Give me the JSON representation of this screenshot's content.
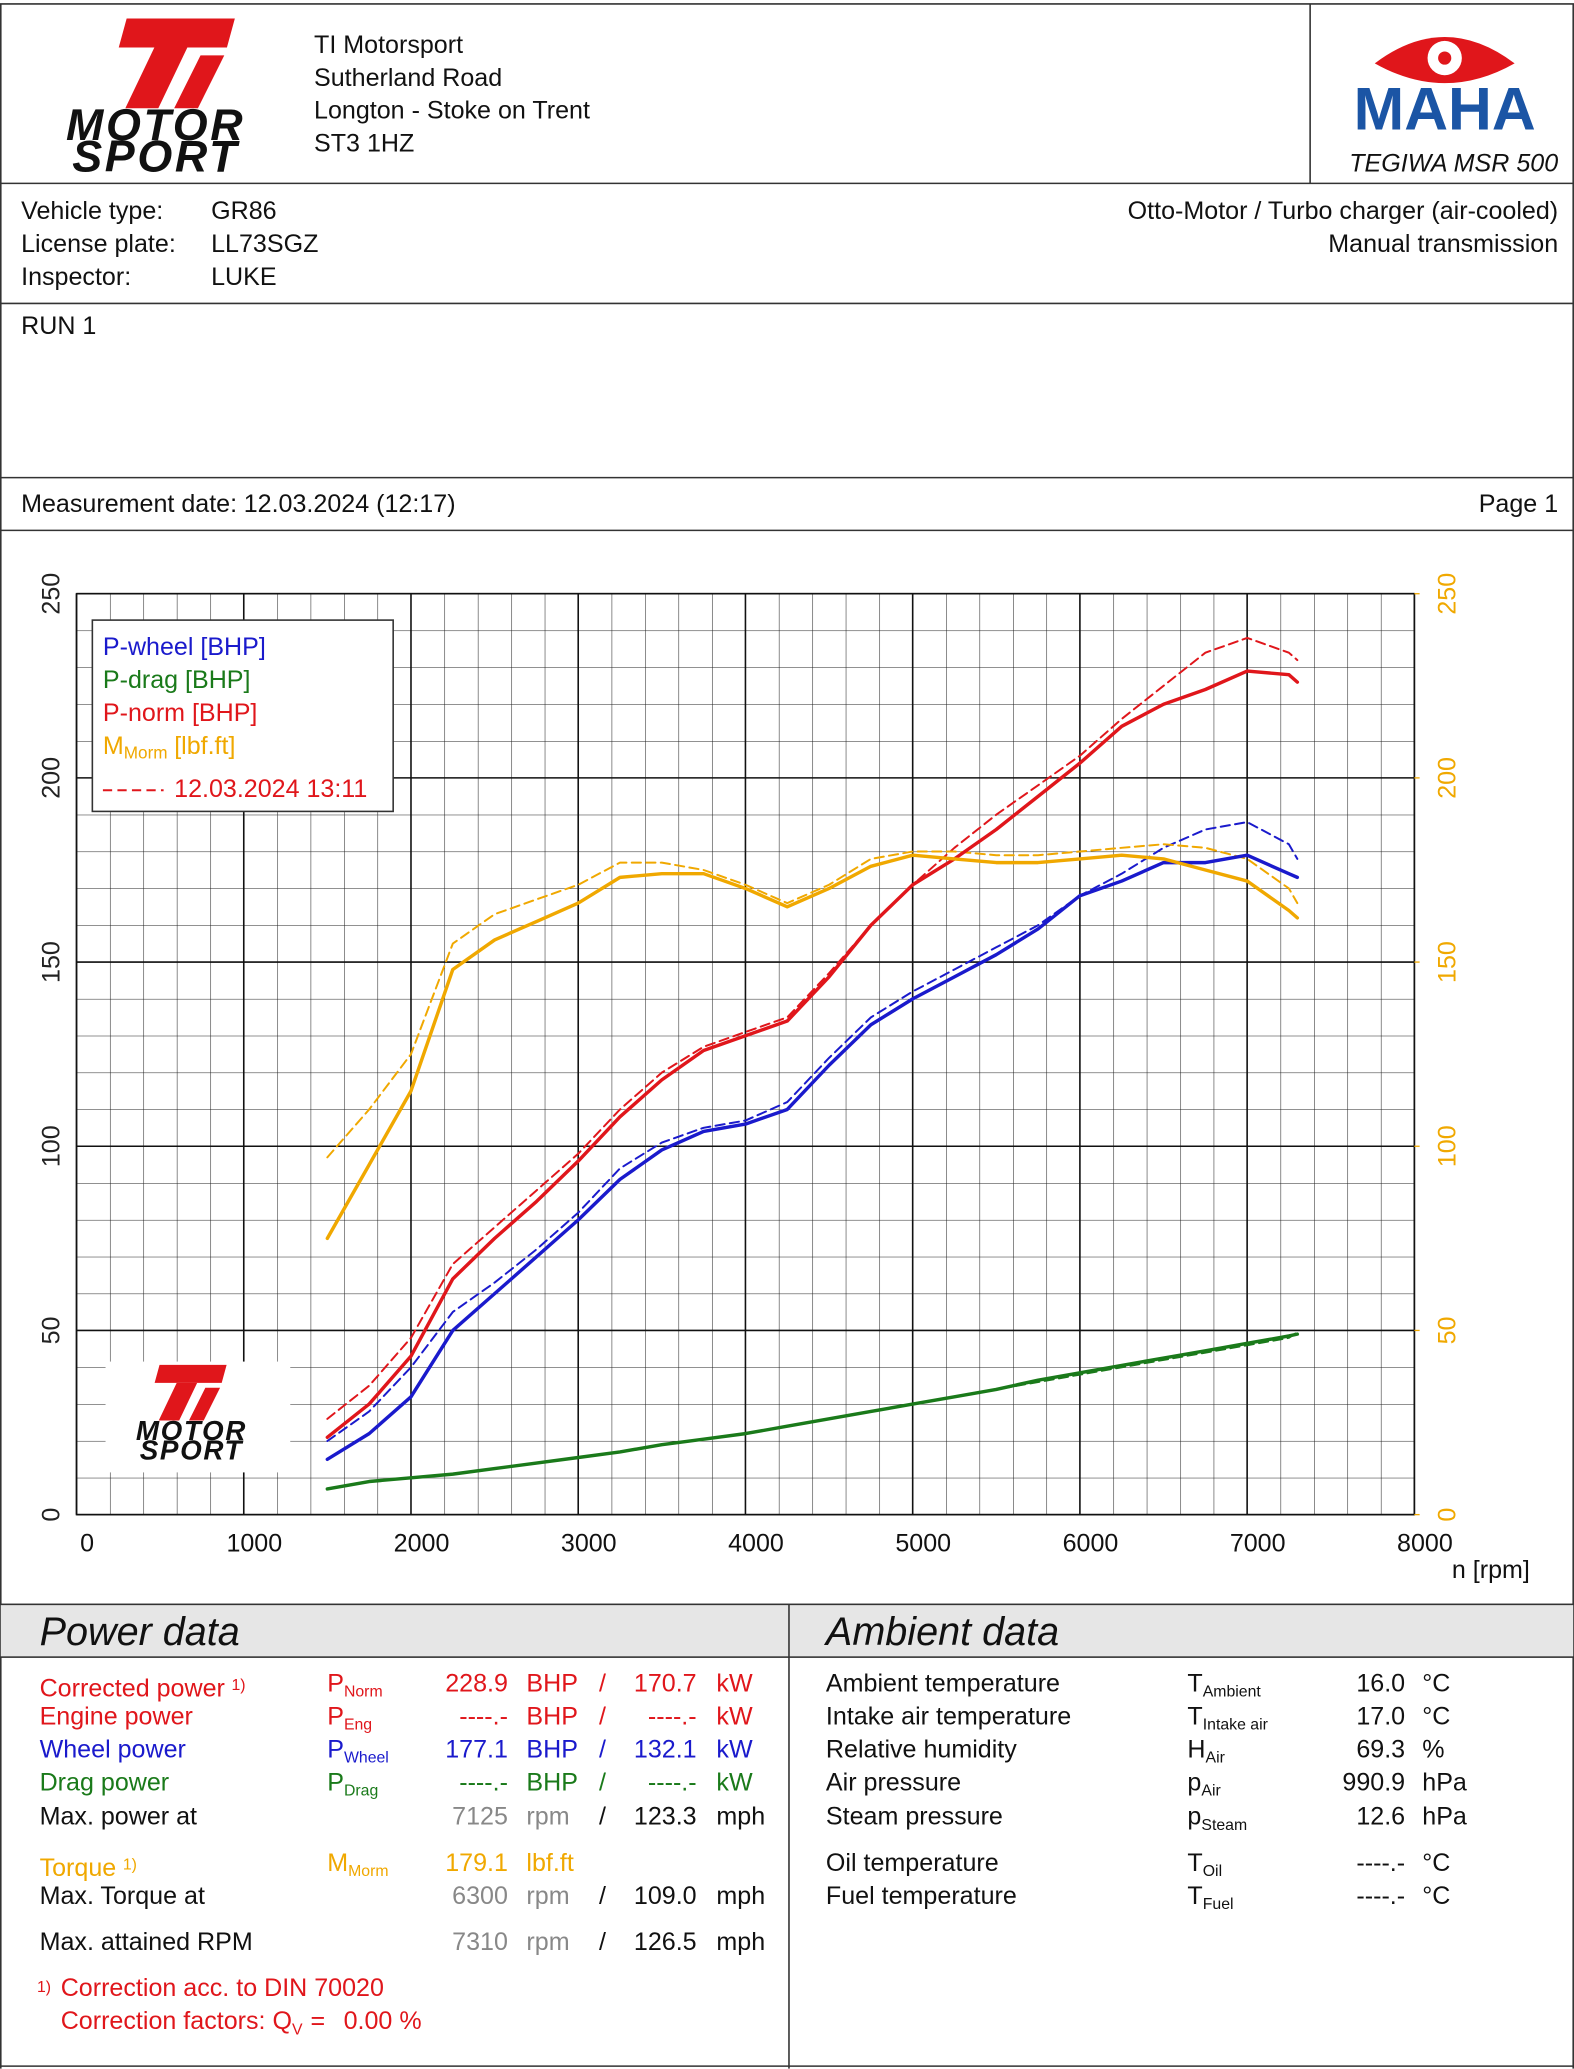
{
  "header": {
    "company": [
      "TI Motorsport",
      "Sutherland Road",
      "Longton - Stoke on Trent",
      "ST3 1HZ"
    ],
    "logo": {
      "line1": "MOTOR",
      "line2": "SPORT"
    },
    "brand": "MAHA",
    "device": "TEGIWA MSR 500"
  },
  "vehicle": {
    "rows": [
      {
        "label": "Vehicle type:",
        "value": "GR86"
      },
      {
        "label": "License plate:",
        "value": "LL73SGZ"
      },
      {
        "label": "Inspector:",
        "value": "LUKE"
      }
    ],
    "engine": "Otto-Motor / Turbo charger (air-cooled)",
    "transmission": "Manual transmission"
  },
  "run": "RUN 1",
  "measurement": {
    "label": "Measurement date:",
    "value": "12.03.2024 (12:17)",
    "page": "Page 1"
  },
  "chart_data": {
    "type": "line",
    "xlabel": "n [rpm]",
    "x": [
      1500,
      1750,
      2000,
      2250,
      2500,
      2750,
      3000,
      3250,
      3500,
      3750,
      4000,
      4250,
      4500,
      4750,
      5000,
      5250,
      5500,
      5750,
      6000,
      6250,
      6500,
      6750,
      7000,
      7250,
      7300
    ],
    "xlim": [
      0,
      8000
    ],
    "xticks": [
      0,
      1000,
      2000,
      3000,
      4000,
      5000,
      6000,
      7000,
      8000
    ],
    "ylim": [
      0,
      250
    ],
    "yticks": [
      0,
      50,
      100,
      150,
      200,
      250
    ],
    "y2lim": [
      0,
      250
    ],
    "y2ticks": [
      0,
      50,
      100,
      150,
      200,
      250
    ],
    "y2_color": "#f0a800",
    "grid": true,
    "legend": "upper left",
    "series": [
      {
        "name": "P-wheel [BHP]",
        "color": "#1a1acc",
        "values": [
          15,
          22,
          32,
          50,
          60,
          70,
          80,
          91,
          99,
          104,
          106,
          110,
          122,
          133,
          140,
          146,
          152,
          159,
          168,
          172,
          177,
          177,
          179,
          174,
          173
        ]
      },
      {
        "name": "P-drag [BHP]",
        "color": "#1a7a1a",
        "values": [
          7,
          9,
          10,
          11,
          12.5,
          14,
          15.5,
          17,
          19,
          20.5,
          22,
          24,
          26,
          28,
          30,
          32,
          34,
          36.5,
          38.5,
          40.5,
          42.5,
          44.5,
          46.5,
          48.5,
          49
        ]
      },
      {
        "name": "P-norm [BHP]",
        "color": "#e0161b",
        "values": [
          21,
          30,
          43,
          64,
          75,
          85,
          96,
          108,
          118,
          126,
          130,
          134,
          146,
          160,
          171,
          178,
          186,
          195,
          204,
          214,
          220,
          224,
          229,
          228,
          226
        ]
      },
      {
        "name": "M",
        "name_sub": "Morm",
        "name_suffix": "[lbf.ft]",
        "color": "#f0a800",
        "axis": "y2",
        "values": [
          75,
          95,
          115,
          148,
          156,
          161,
          166,
          173,
          174,
          174,
          170,
          165,
          170,
          176,
          179,
          178,
          177,
          177,
          178,
          179,
          178,
          175,
          172,
          164,
          162
        ]
      }
    ],
    "comparison": {
      "name": "12.03.2024 13:11",
      "color": "#e0161b",
      "series": [
        {
          "color": "#1a1acc",
          "values": [
            20,
            28,
            40,
            55,
            63,
            72,
            82,
            94,
            101,
            105,
            107,
            112,
            124,
            135,
            142,
            148,
            154,
            160,
            168,
            174,
            181,
            186,
            188,
            182,
            178
          ]
        },
        {
          "color": "#1a7a1a",
          "values": [
            7,
            9,
            10,
            11,
            12.5,
            14,
            15.5,
            17,
            19,
            20.5,
            22,
            24,
            26,
            28,
            30,
            32,
            34,
            36,
            38,
            40,
            42,
            44,
            46,
            48,
            49.5
          ]
        },
        {
          "color": "#e0161b",
          "values": [
            26,
            35,
            48,
            68,
            78,
            88,
            98,
            110,
            120,
            127,
            131,
            135,
            147,
            160,
            171,
            181,
            190,
            198,
            206,
            216,
            225,
            234,
            238,
            234,
            232
          ]
        },
        {
          "color": "#f0a800",
          "axis": "y2",
          "values": [
            97,
            110,
            125,
            155,
            163,
            167,
            171,
            177,
            177,
            175,
            171,
            166,
            171,
            178,
            180,
            180,
            179,
            179,
            180,
            181,
            182,
            181,
            178,
            170,
            166
          ]
        }
      ]
    }
  },
  "power": {
    "title": "Power data",
    "rows": [
      {
        "label": "Corrected power",
        "note": "1)",
        "symbol": "P",
        "sub": "Norm",
        "value": "228.9",
        "unit": "BHP",
        "sep": "/",
        "value2": "170.7",
        "unit2": "kW",
        "color": "#e0161b"
      },
      {
        "label": "Engine power",
        "symbol": "P",
        "sub": "Eng",
        "value": "----.-",
        "unit": "BHP",
        "sep": "/",
        "value2": "----.-",
        "unit2": "kW",
        "color": "#e0161b"
      },
      {
        "label": "Wheel power",
        "symbol": "P",
        "sub": "Wheel",
        "value": "177.1",
        "unit": "BHP",
        "sep": "/",
        "value2": "132.1",
        "unit2": "kW",
        "color": "#1a1acc"
      },
      {
        "label": "Drag power",
        "symbol": "P",
        "sub": "Drag",
        "value": "----.-",
        "unit": "BHP",
        "sep": "/",
        "value2": "----.-",
        "unit2": "kW",
        "color": "#1a7a1a"
      },
      {
        "label": "Max. power at",
        "value": "7125",
        "unit": "rpm",
        "sep": "/",
        "value2": "123.3",
        "unit2": "mph",
        "muted": true
      },
      {
        "label": "Torque",
        "note": "1)",
        "symbol": "M",
        "sub": "Morm",
        "value": "179.1",
        "unit": "lbf.ft",
        "color": "#f0a800"
      },
      {
        "label": "Max. Torque at",
        "value": "6300",
        "unit": "rpm",
        "sep": "/",
        "value2": "109.0",
        "unit2": "mph",
        "muted": true
      },
      {
        "label": "Max. attained RPM",
        "value": "7310",
        "unit": "rpm",
        "sep": "/",
        "value2": "126.5",
        "unit2": "mph",
        "muted": true
      }
    ],
    "footnote": {
      "marker": "1)",
      "text": "Correction acc. to DIN 70020",
      "factors_label": "Correction factors: Q",
      "factors_sub": "V",
      "factors_eq": "=",
      "factors_value": "0.00 %",
      "color": "#e0161b"
    }
  },
  "ambient": {
    "title": "Ambient data",
    "rows": [
      {
        "label": "Ambient temperature",
        "symbol": "T",
        "sub": "Ambient",
        "value": "16.0",
        "unit": "°C"
      },
      {
        "label": "Intake air temperature",
        "symbol": "T",
        "sub": "Intake air",
        "value": "17.0",
        "unit": "°C"
      },
      {
        "label": "Relative humidity",
        "symbol": "H",
        "sub": "Air",
        "value": "69.3",
        "unit": "%"
      },
      {
        "label": "Air pressure",
        "symbol": "p",
        "sub": "Air",
        "value": "990.9",
        "unit": "hPa"
      },
      {
        "label": "Steam pressure",
        "symbol": "p",
        "sub": "Steam",
        "value": "12.6",
        "unit": "hPa"
      },
      {
        "label": "Oil temperature",
        "symbol": "T",
        "sub": "Oil",
        "value": "----.-",
        "unit": "°C"
      },
      {
        "label": "Fuel temperature",
        "symbol": "T",
        "sub": "Fuel",
        "value": "----.-",
        "unit": "°C"
      }
    ]
  }
}
